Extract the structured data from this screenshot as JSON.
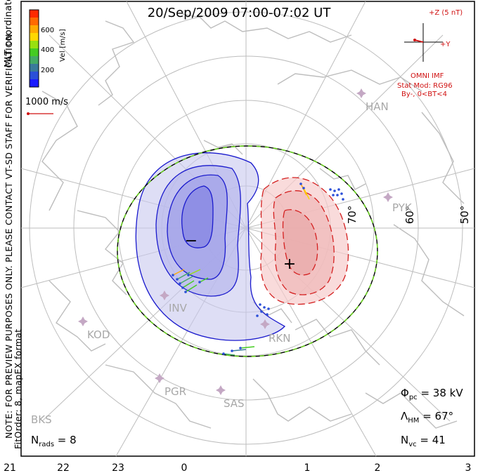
{
  "title": "20/Sep/2009 07:00-07:02 UT",
  "coord_label": "MLT coordinates",
  "legend": {
    "label": "Vel [m/s]",
    "ticks": [
      "600",
      "400",
      "200"
    ],
    "colors": [
      "#ff2a00",
      "#ff6a00",
      "#ffaa00",
      "#ffd800",
      "#98e010",
      "#44cc22",
      "#44aa66",
      "#3a7a9a",
      "#2b4fd8",
      "#1a1aff"
    ]
  },
  "vector_scale": "1000 m/s",
  "preview_note": "NOTE: FOR PREVIEW PURPOSES ONLY. PLEASE CONTACT VT-SD STAFF FOR VERIFICATION.",
  "fit_note": "FitOrder: 8, mapEX format",
  "imf": {
    "z_label": "+Z (5 nT)",
    "y_label": "+Y",
    "source": "OMNI IMF",
    "model": "Stat Mod: RG96",
    "condition": "By-, 0<BT<4"
  },
  "stats": {
    "phi_pc_label": "Φ",
    "phi_pc_sub": "pc",
    "phi_pc_value": " = 38 kV",
    "lambda_label": "Λ",
    "lambda_sub": "HM",
    "lambda_value": " = 67°",
    "nvc_label": "N",
    "nvc_sub": "vc",
    "nvc_value": " = 41",
    "nrads_label": "N",
    "nrads_sub": "rads",
    "nrads_value": " = 8"
  },
  "lat_labels": [
    "70°",
    "60°",
    "50°"
  ],
  "mlt_ticks": [
    "21",
    "22",
    "23",
    "0",
    "1",
    "2",
    "3"
  ],
  "stations": [
    "HAN",
    "PYK",
    "INV",
    "KOD",
    "PGR",
    "SAS",
    "RKN",
    "BKS"
  ],
  "extrema": {
    "min_symbol": "−",
    "max_symbol": "+"
  },
  "colors": {
    "negative_fill": "#c8c8ef",
    "negative_line": "#1a1acd",
    "positive_fill": "#f6cccc",
    "positive_line": "#d42020",
    "boundary_dash": "#6ad020",
    "grid": "#bdbdbd",
    "coast": "#bdbdbd",
    "station": "#c4a8c4"
  }
}
